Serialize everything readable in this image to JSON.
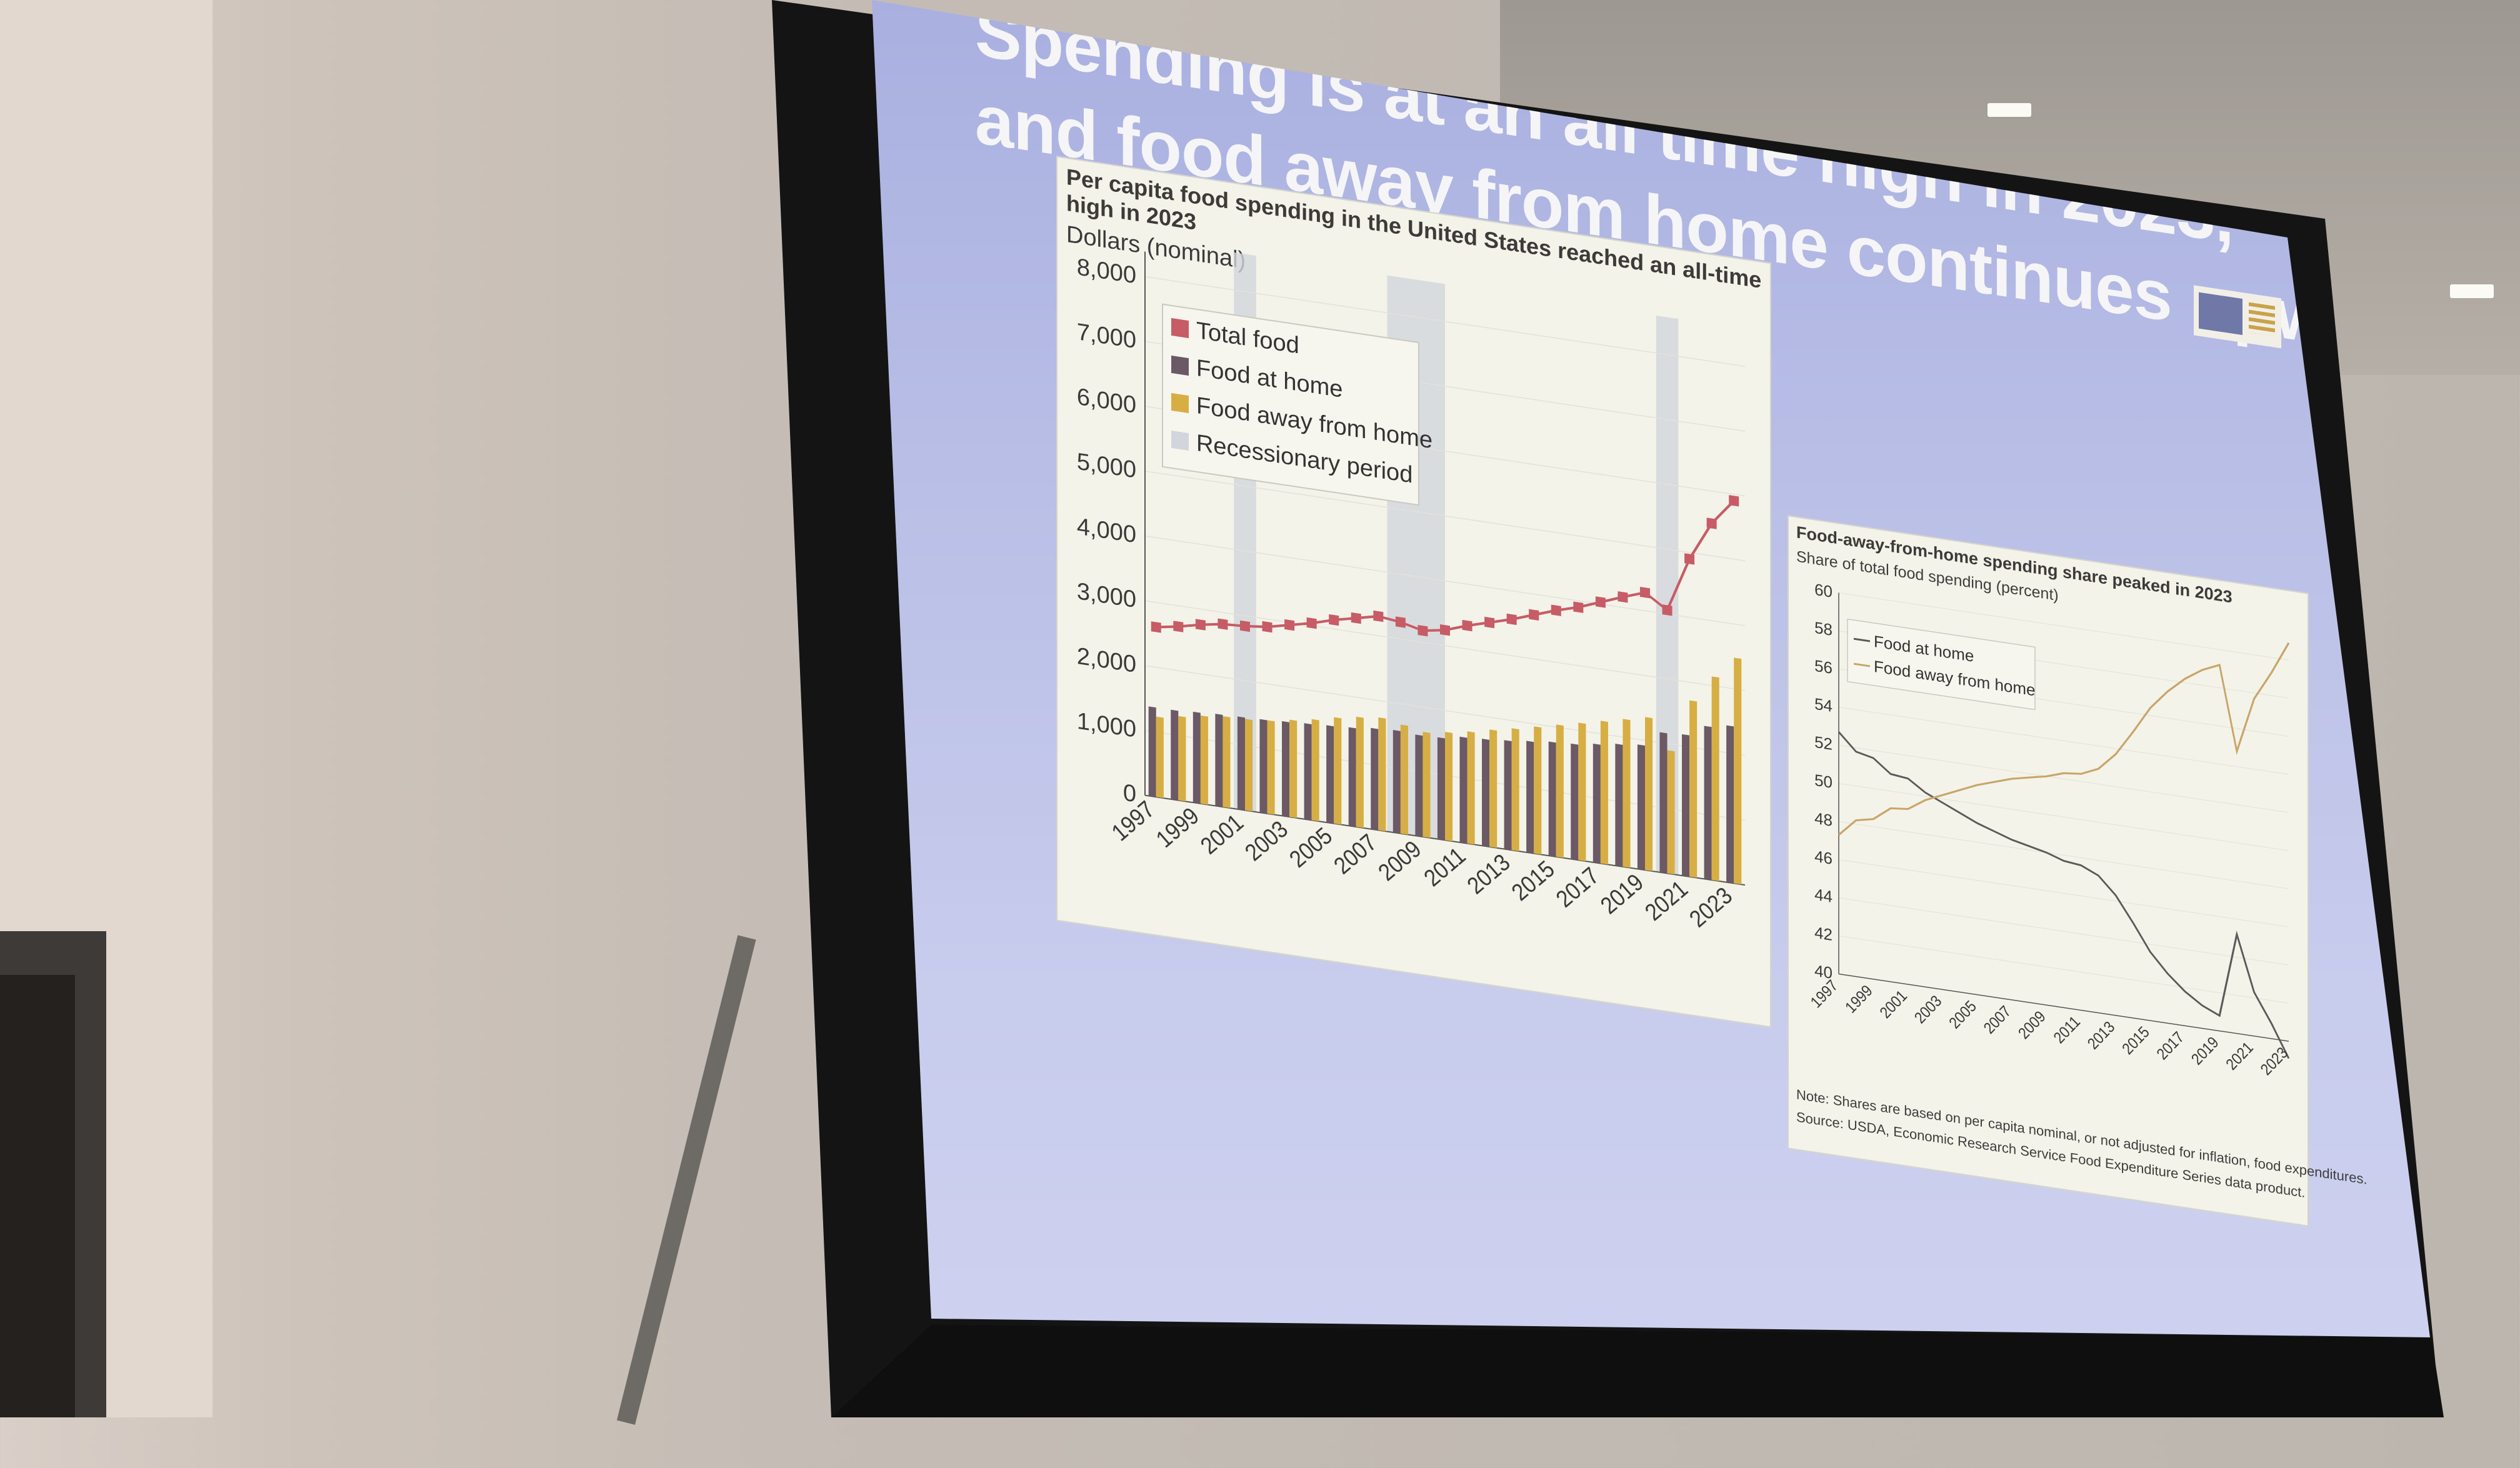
{
  "slide": {
    "title_line1": "Spending is at an all time high in 2023,",
    "title_line2": "and food away from home continues upward"
  },
  "colors": {
    "total_food": "#c75c66",
    "food_at_home": "#6b5a66",
    "food_away": "#d6ae44",
    "recession": "#d2d6dc",
    "fah_line": "#5a5a5a",
    "fafh_line": "#c9a56a"
  },
  "chart_data": [
    {
      "type": "bar",
      "title": "Per capita food spending in the United States reached an all-time high in 2023",
      "ylabel": "Dollars (nominal)",
      "ylim": [
        0,
        8000
      ],
      "yticks": [
        "0",
        "1,000",
        "2,000",
        "3,000",
        "4,000",
        "5,000",
        "6,000",
        "7,000",
        "8,000"
      ],
      "categories": [
        1997,
        1998,
        1999,
        2000,
        2001,
        2002,
        2003,
        2004,
        2005,
        2006,
        2007,
        2008,
        2009,
        2010,
        2011,
        2012,
        2013,
        2014,
        2015,
        2016,
        2017,
        2018,
        2019,
        2020,
        2021,
        2022,
        2023
      ],
      "x_tick_labels": [
        "1997",
        "1999",
        "2001",
        "2003",
        "2005",
        "2007",
        "2009",
        "2011",
        "2013",
        "2015",
        "2017",
        "2019",
        "2021",
        "2023"
      ],
      "series": [
        {
          "name": "Total food",
          "type": "line",
          "values": [
            2620,
            2680,
            2760,
            2820,
            2840,
            2880,
            2960,
            3040,
            3140,
            3220,
            3300,
            3260,
            3180,
            3240,
            3360,
            3460,
            3560,
            3680,
            3800,
            3900,
            4030,
            4160,
            4280,
            4060,
            4900,
            5500,
            5900
          ]
        },
        {
          "name": "Food at home",
          "type": "bar",
          "values": [
            1380,
            1380,
            1400,
            1420,
            1430,
            1440,
            1460,
            1480,
            1500,
            1520,
            1560,
            1580,
            1560,
            1570,
            1630,
            1650,
            1680,
            1720,
            1760,
            1780,
            1830,
            1880,
            1920,
            2160,
            2180,
            2360,
            2420
          ]
        },
        {
          "name": "Food away from home",
          "type": "bar",
          "values": [
            1240,
            1300,
            1360,
            1400,
            1410,
            1440,
            1500,
            1560,
            1640,
            1700,
            1740,
            1680,
            1620,
            1670,
            1730,
            1810,
            1880,
            1960,
            2040,
            2120,
            2200,
            2280,
            2360,
            1900,
            2720,
            3140,
            3480
          ]
        }
      ],
      "recessionary_periods": [
        [
          2001,
          2001
        ],
        [
          2007.9,
          2009.5
        ],
        [
          2020,
          2020
        ]
      ],
      "legend": [
        "Total food",
        "Food at home",
        "Food away from home",
        "Recessionary period"
      ],
      "legend_position": "top-left"
    },
    {
      "type": "line",
      "title": "Food-away-from-home spending share peaked in 2023",
      "ylabel": "Share of total food spending (percent)",
      "ylim": [
        40,
        60
      ],
      "yticks": [
        "40",
        "42",
        "44",
        "46",
        "48",
        "50",
        "52",
        "54",
        "56",
        "58",
        "60"
      ],
      "x": [
        1997,
        1998,
        1999,
        2000,
        2001,
        2002,
        2003,
        2004,
        2005,
        2006,
        2007,
        2008,
        2009,
        2010,
        2011,
        2012,
        2013,
        2014,
        2015,
        2016,
        2017,
        2018,
        2019,
        2020,
        2021,
        2022,
        2023
      ],
      "x_tick_labels": [
        "1997",
        "1999",
        "2001",
        "2003",
        "2005",
        "2007",
        "2009",
        "2011",
        "2013",
        "2015",
        "2017",
        "2019",
        "2021",
        "2023"
      ],
      "series": [
        {
          "name": "Food at home",
          "values": [
            52.7,
            51.8,
            51.6,
            50.9,
            50.8,
            50.2,
            49.8,
            49.4,
            49.0,
            48.7,
            48.4,
            48.2,
            48.0,
            47.7,
            47.6,
            47.2,
            46.3,
            45.0,
            43.6,
            42.6,
            41.8,
            41.2,
            40.8,
            45.2,
            42.3,
            40.8,
            39.1
          ]
        },
        {
          "name": "Food away from home",
          "values": [
            47.3,
            48.2,
            48.4,
            49.1,
            49.2,
            49.8,
            50.2,
            50.6,
            51.0,
            51.3,
            51.6,
            51.8,
            52.0,
            52.3,
            52.4,
            52.8,
            53.7,
            55.0,
            56.4,
            57.4,
            58.2,
            58.8,
            59.2,
            54.8,
            57.7,
            59.2,
            60.9
          ]
        }
      ],
      "legend": [
        "Food at home",
        "Food away from home"
      ],
      "legend_position": "top-left"
    }
  ],
  "notes": {
    "note": "Note: Shares are based on per capita nominal, or not adjusted for inflation, food expenditures.",
    "source": "Source: USDA, Economic Research Service Food Expenditure Series data product."
  }
}
